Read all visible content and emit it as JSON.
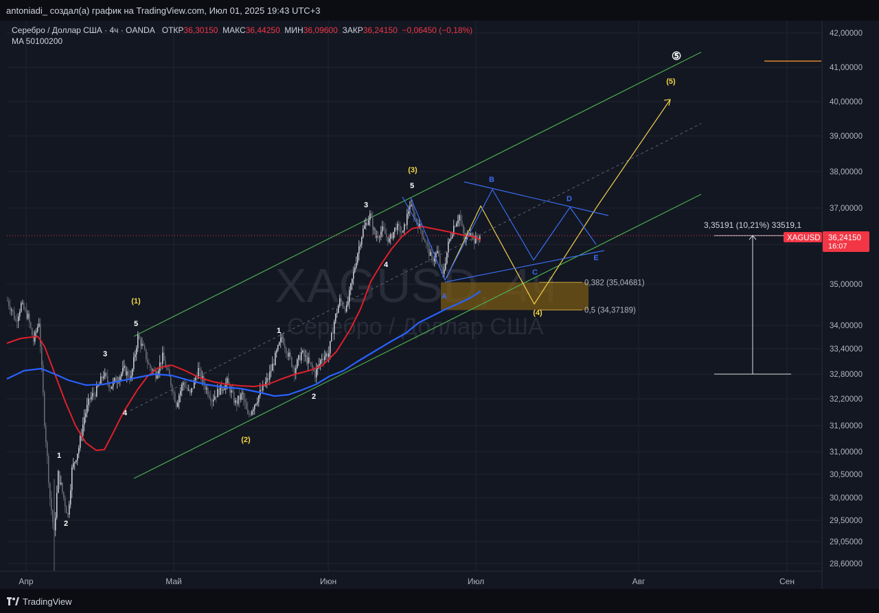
{
  "header": {
    "attribution": "antoniadi_ создал(а) график на TradingView.com, Июл 01, 2025 19:43 UTC+3"
  },
  "legend": {
    "symbol": "Серебро / Доллар США · 4ч · OANDA",
    "open_label": "ОТКР",
    "open_value": "36,30150",
    "high_label": "МАКС",
    "high_value": "36,44250",
    "low_label": "МИН",
    "low_value": "36,09600",
    "close_label": "ЗАКР",
    "close_value": "36,24150",
    "change": "−0,06450 (−0,18%)",
    "ma": "MA 50100200"
  },
  "watermark": {
    "line1": "XAGUSD, 4ч",
    "line2": "Серебро / Доллар США"
  },
  "footer": {
    "brand": "TradingView"
  },
  "colors": {
    "background": "#131722",
    "bull": "#d1d4dc",
    "ma50": "#e0202a",
    "ma100": "#2962ff",
    "channel": "#4caf50",
    "yellow_path": "#e6c84a",
    "blue_path": "#3a6df0",
    "price_tag": "#f23645",
    "fib_zone": "#7a5a16"
  },
  "chart_data": {
    "type": "candlestick",
    "symbol": "XAGUSD",
    "timeframe": "4ч",
    "y_axis": {
      "ticks": [
        42.0,
        41.0,
        40.0,
        39.0,
        38.0,
        37.0,
        36.0,
        35.0,
        34.0,
        33.4,
        32.8,
        32.2,
        31.6,
        31.0,
        30.5,
        30.0,
        29.5,
        29.05,
        28.6
      ],
      "tick_labels": [
        "42,00000",
        "41,00000",
        "40,00000",
        "39,00000",
        "38,00000",
        "37,00000",
        "36,00000",
        "35,00000",
        "34,00000",
        "33,40000",
        "32,80000",
        "32,20000",
        "31,60000",
        "31,00000",
        "30,50000",
        "30,00000",
        "29,50000",
        "29,05000",
        "28,60000"
      ]
    },
    "x_axis": {
      "labels": [
        "Апр",
        "Май",
        "Июн",
        "Июл",
        "Авг",
        "Сен"
      ]
    },
    "current_price": {
      "symbol": "XAGUSD",
      "value": "36,24150",
      "countdown": "16:07",
      "y": 36.2415
    },
    "measure": {
      "label": "3,35191 (10,21%) 33519,1",
      "from": 32.8,
      "to": 36.2415
    },
    "fib_levels": [
      {
        "label": "0,382 (35,04681)",
        "y": 35.04681
      },
      {
        "label": "0,5 (34,37189)",
        "y": 34.37189
      }
    ],
    "series": [
      {
        "name": "MA 50",
        "color": "#e0202a"
      },
      {
        "name": "MA 100",
        "color": "#2962ff"
      }
    ],
    "wave_labels": [
      {
        "text": "1",
        "color": "white"
      },
      {
        "text": "2",
        "color": "white"
      },
      {
        "text": "3",
        "color": "white"
      },
      {
        "text": "4",
        "color": "white"
      },
      {
        "text": "5",
        "color": "white"
      },
      {
        "text": "(1)",
        "color": "yellow"
      },
      {
        "text": "(2)",
        "color": "yellow"
      },
      {
        "text": "1",
        "color": "white"
      },
      {
        "text": "2",
        "color": "white"
      },
      {
        "text": "3",
        "color": "white"
      },
      {
        "text": "4",
        "color": "white"
      },
      {
        "text": "5",
        "color": "white"
      },
      {
        "text": "(3)",
        "color": "yellow"
      },
      {
        "text": "A",
        "color": "blue"
      },
      {
        "text": "B",
        "color": "blue"
      },
      {
        "text": "C",
        "color": "blue"
      },
      {
        "text": "D",
        "color": "blue"
      },
      {
        "text": "E",
        "color": "blue"
      },
      {
        "text": "(4)",
        "color": "yellow"
      },
      {
        "text": "(5)",
        "color": "yellow"
      },
      {
        "text": "⑤",
        "color": "white"
      }
    ]
  }
}
